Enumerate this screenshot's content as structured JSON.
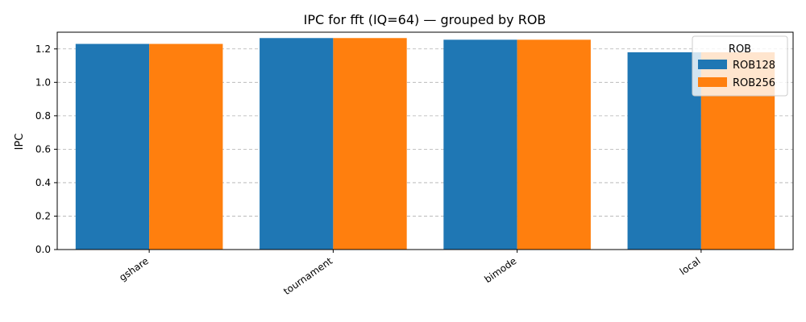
{
  "chart_data": {
    "type": "bar",
    "title": "IPC for fft (IQ=64) — grouped by ROB",
    "xlabel": "",
    "ylabel": "IPC",
    "categories": [
      "gshare",
      "tournament",
      "bimode",
      "local"
    ],
    "series": [
      {
        "name": "ROB128",
        "color": "#1f77b4",
        "values": [
          1.23,
          1.265,
          1.255,
          1.18
        ]
      },
      {
        "name": "ROB256",
        "color": "#ff7f0e",
        "values": [
          1.23,
          1.265,
          1.255,
          1.18
        ]
      }
    ],
    "ylim": [
      0,
      1.3
    ],
    "yticks": [
      0.0,
      0.2,
      0.4,
      0.6,
      0.8,
      1.0,
      1.2
    ],
    "ytick_labels": [
      "0.0",
      "0.2",
      "0.4",
      "0.6",
      "0.8",
      "1.0",
      "1.2"
    ],
    "grid": "y-dashed",
    "legend": {
      "title": "ROB",
      "placement": "top-right"
    }
  }
}
